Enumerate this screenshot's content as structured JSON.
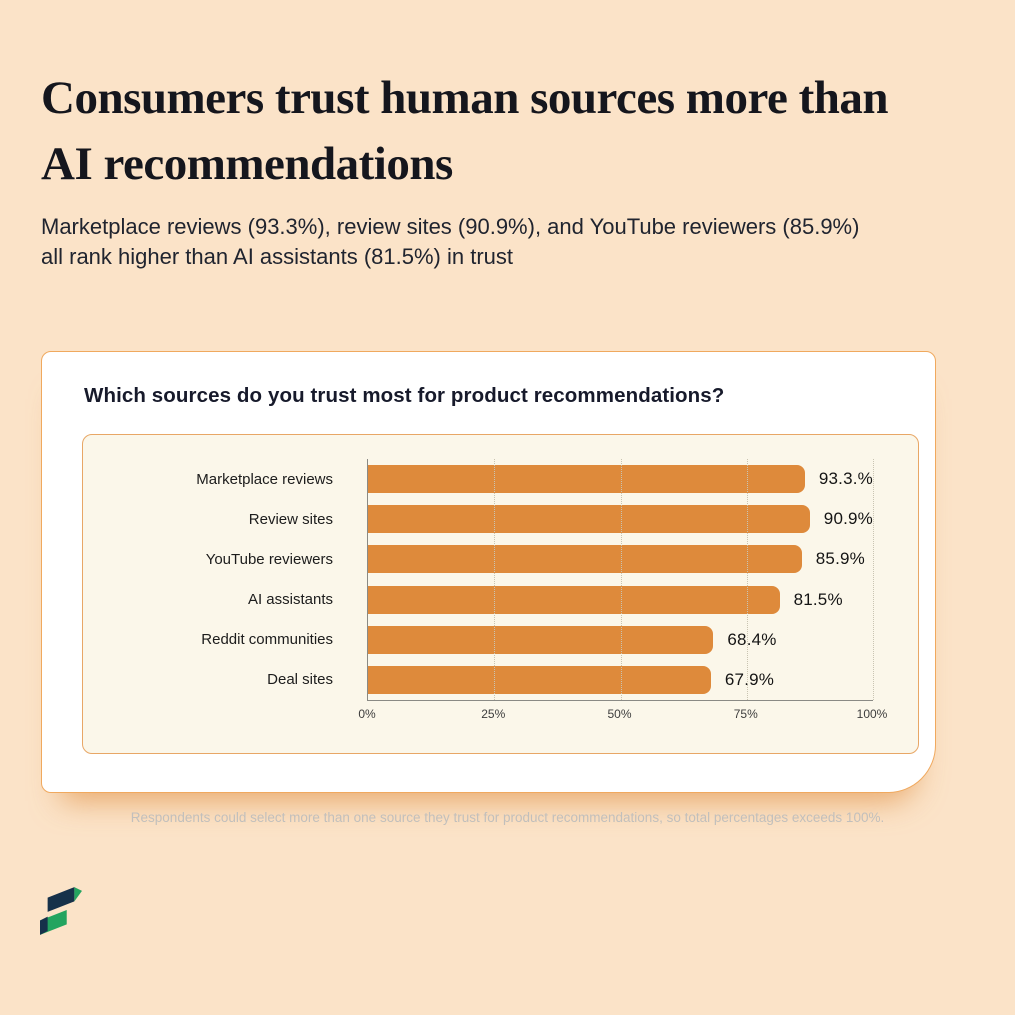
{
  "page": {
    "title": "Consumers trust human sources more than AI recommendations",
    "subtitle": "Marketplace reviews (93.3%), review sites (90.9%), and YouTube reviewers (85.9%) all rank higher than AI assistants (81.5%) in trust",
    "footnote": "Respondents could select more than one source they trust for product recommendations, so total percentages exceeds 100%."
  },
  "card": {
    "question": "Which sources do you trust most for product recommendations?"
  },
  "chart_data": {
    "type": "bar",
    "orientation": "horizontal",
    "title": "Which sources do you trust most for product recommendations?",
    "categories": [
      "Marketplace reviews",
      "Review sites",
      "YouTube reviewers",
      "AI assistants",
      "Reddit communities",
      "Deal sites"
    ],
    "values": [
      93.3,
      90.9,
      85.9,
      81.5,
      68.4,
      67.9
    ],
    "value_labels": [
      "93.3.%",
      "90.9%",
      "85.9%",
      "81.5%",
      "68.4%",
      "67.9%"
    ],
    "x_ticks": [
      "0%",
      "25%",
      "50%",
      "75%",
      "100%"
    ],
    "x_tick_positions": [
      0,
      25,
      50,
      75,
      100
    ],
    "xlim": [
      0,
      100
    ],
    "grid": "dotted-vertical",
    "legend": "none"
  },
  "colors": {
    "background": "#fbe3c8",
    "bar": "#DE8A3B",
    "panel_bg": "#fbf7ea",
    "panel_border": "#e8a766",
    "card_border": "#f0a95e",
    "heading": "#15161d",
    "logo_dark": "#16314a",
    "logo_green": "#23a45f"
  }
}
